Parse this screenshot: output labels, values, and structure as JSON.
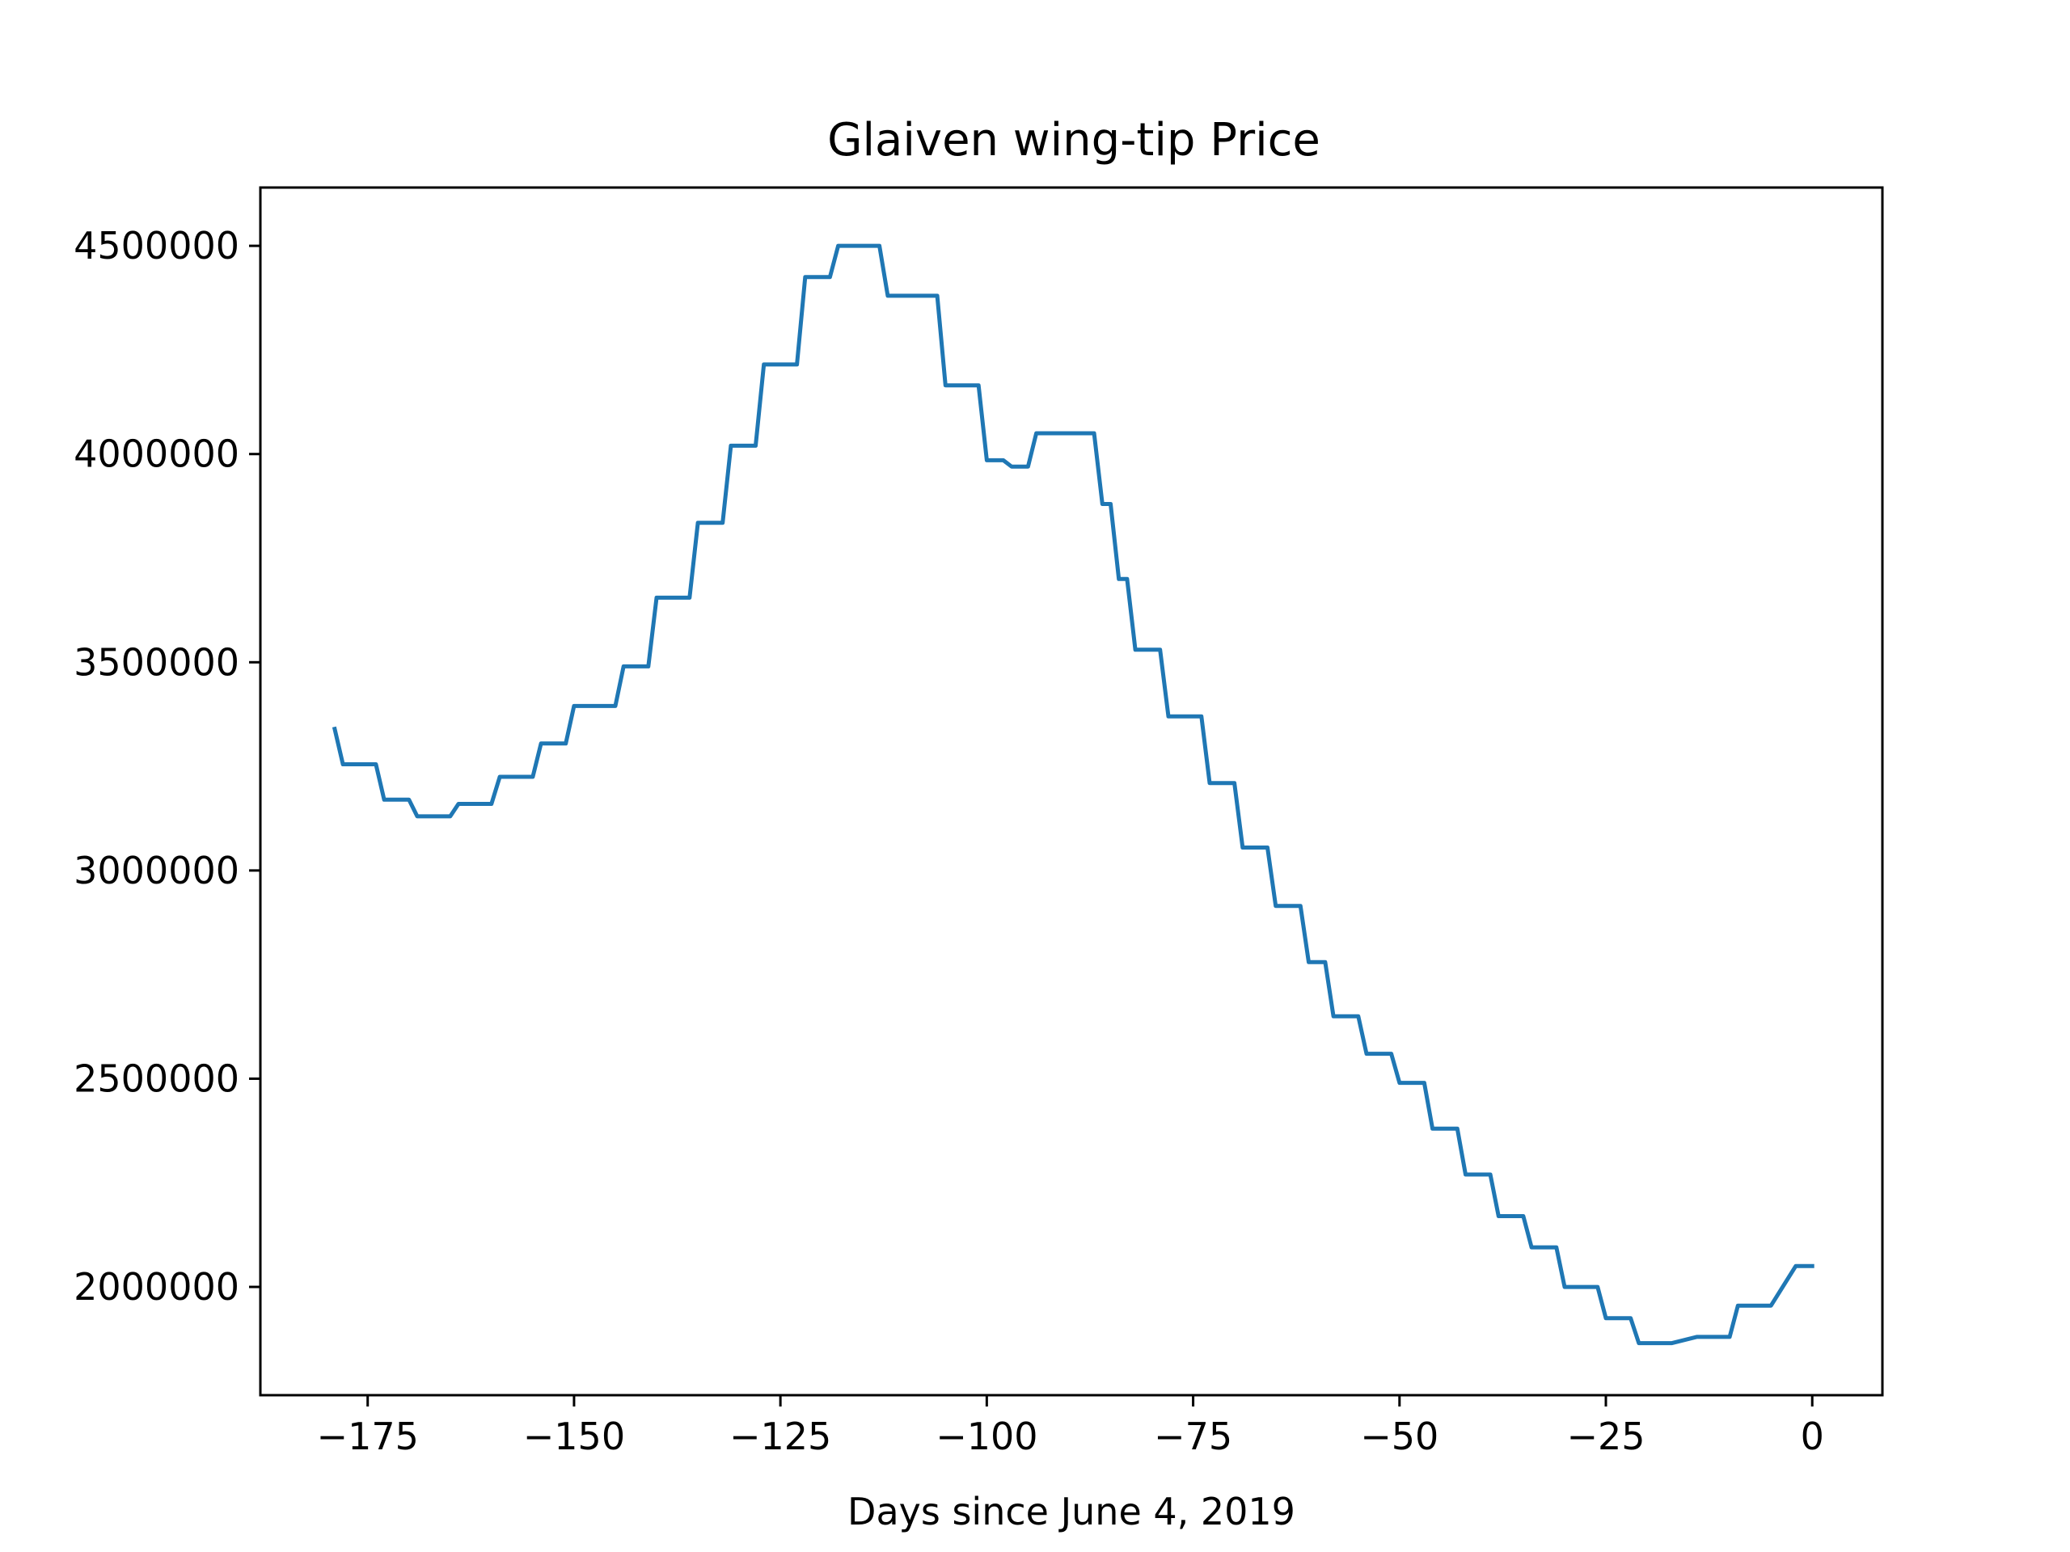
{
  "chart_data": {
    "type": "line",
    "title": "Glaiven wing-tip Price",
    "xlabel": "Days since June 4, 2019",
    "ylabel": "",
    "xlim": [
      -188,
      8.5
    ],
    "ylim": [
      1740000,
      4640000
    ],
    "x_ticks": [
      -175,
      -150,
      -125,
      -100,
      -75,
      -50,
      -25,
      0
    ],
    "x_tick_labels": [
      "−175",
      "−150",
      "−125",
      "−100",
      "−75",
      "−50",
      "−25",
      "0"
    ],
    "y_ticks": [
      2000000,
      2500000,
      3000000,
      3500000,
      4000000,
      4500000
    ],
    "y_tick_labels": [
      "2000000",
      "2500000",
      "3000000",
      "3500000",
      "4000000",
      "4500000"
    ],
    "grid": false,
    "series": [
      {
        "color": "#1f77b4",
        "x": [
          -179,
          -178,
          -174,
          -173,
          -170,
          -169,
          -165,
          -164,
          -160,
          -159,
          -155,
          -154,
          -151,
          -150,
          -145,
          -144,
          -141,
          -140,
          -136,
          -135,
          -132,
          -131,
          -128,
          -127,
          -123,
          -122,
          -119,
          -118,
          -116,
          -115,
          -113,
          -112,
          -110,
          -109,
          -106,
          -105,
          -101,
          -100,
          -98,
          -97,
          -95,
          -94,
          -91,
          -87,
          -86,
          -85,
          -84,
          -83,
          -82,
          -81,
          -79,
          -78,
          -74,
          -73,
          -70,
          -69,
          -66,
          -65,
          -62,
          -61,
          -59,
          -58,
          -55,
          -54,
          -51,
          -50,
          -47,
          -46,
          -43,
          -42,
          -39,
          -38,
          -35,
          -34,
          -31,
          -30,
          -26,
          -25,
          -22,
          -21,
          -18,
          -17,
          -14,
          -13,
          -10,
          -9,
          -6,
          -5,
          -2,
          -1,
          0
        ],
        "y": [
          3340000,
          3255000,
          3255000,
          3170000,
          3170000,
          3130000,
          3130000,
          3160000,
          3160000,
          3225000,
          3225000,
          3305000,
          3305000,
          3395000,
          3395000,
          3490000,
          3490000,
          3655000,
          3655000,
          3835000,
          3835000,
          4020000,
          4020000,
          4215000,
          4215000,
          4425000,
          4425000,
          4500000,
          4500000,
          4500000,
          4500000,
          4380000,
          4380000,
          4380000,
          4380000,
          4165000,
          4165000,
          3985000,
          3985000,
          3970000,
          3970000,
          4050000,
          4050000,
          4050000,
          3880000,
          3880000,
          3700000,
          3700000,
          3530000,
          3530000,
          3530000,
          3370000,
          3370000,
          3210000,
          3210000,
          3055000,
          3055000,
          2915000,
          2915000,
          2780000,
          2780000,
          2650000,
          2650000,
          2560000,
          2560000,
          2490000,
          2490000,
          2380000,
          2380000,
          2270000,
          2270000,
          2170000,
          2170000,
          2095000,
          2095000,
          2000000,
          2000000,
          1925000,
          1925000,
          1865000,
          1865000,
          1865000,
          1880000,
          1880000,
          1880000,
          1955000,
          1955000,
          1955000,
          2050000,
          2050000,
          2050000
        ]
      }
    ]
  }
}
